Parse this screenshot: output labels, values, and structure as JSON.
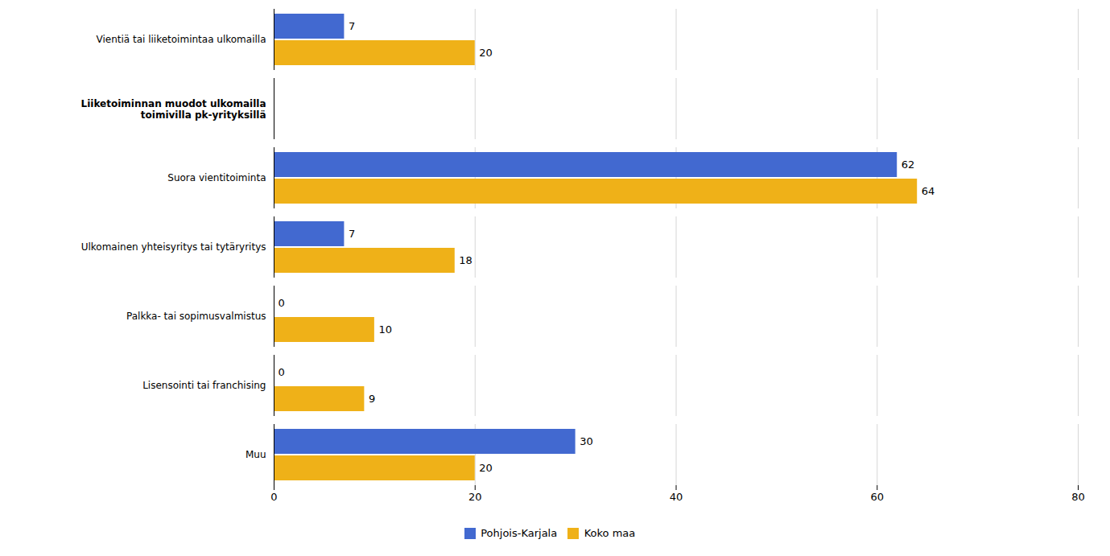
{
  "chart_data": {
    "type": "bar",
    "orientation": "horizontal",
    "categories": [
      "Vientiä tai liiketoimintaa ulkomailla",
      "Liiketoiminnan muodot ulkomailla\ntoimivilla pk-yrityksillä",
      "Suora vientitoiminta",
      "Ulkomainen yhteisyritys tai tytäryritys",
      "Palkka- tai sopimusvalmistus",
      "Lisensointi tai franchising",
      "Muu"
    ],
    "series": [
      {
        "name": "Pohjois-Karjala",
        "values": [
          7,
          null,
          62,
          7,
          0,
          0,
          30
        ]
      },
      {
        "name": "Koko maa",
        "values": [
          20,
          null,
          64,
          18,
          10,
          9,
          20
        ]
      }
    ],
    "xlim": [
      0,
      80
    ],
    "xticks": [
      0,
      20,
      40,
      60,
      80
    ],
    "grid": true,
    "legend": "bottom",
    "data_labels": true
  }
}
